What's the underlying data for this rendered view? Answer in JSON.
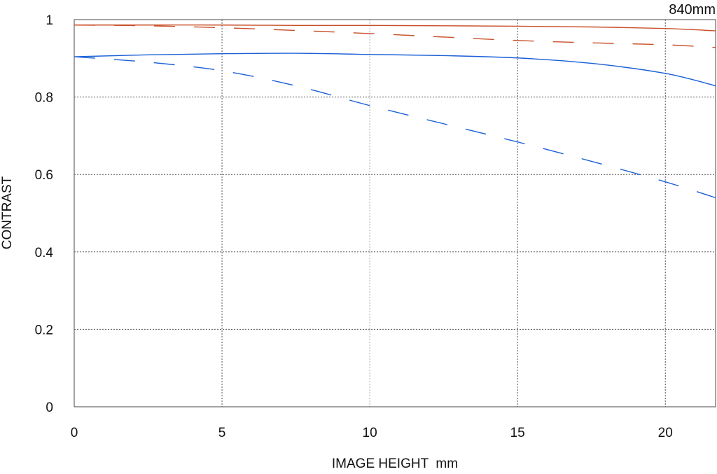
{
  "chart_data": {
    "type": "line",
    "title": "840mm",
    "xlabel": "IMAGE HEIGHT  mm",
    "ylabel": "CONTRAST",
    "xlim": [
      0,
      21.7
    ],
    "ylim": [
      0,
      1
    ],
    "xticks": [
      0,
      5,
      10,
      15,
      20
    ],
    "yticks": [
      0,
      0.2,
      0.4,
      0.6,
      0.8,
      1
    ],
    "ytick_labels": [
      "0",
      "0.2",
      "0.4",
      "0.6",
      "0.8",
      "1"
    ],
    "xtick_labels": [
      "0",
      "5",
      "10",
      "15",
      "20"
    ],
    "grid": true,
    "x": [
      0,
      2.5,
      5,
      7.5,
      10,
      12.5,
      15,
      17.5,
      20,
      21.7
    ],
    "series": [
      {
        "name": "red-solid",
        "color": "#c8502a",
        "dash": false,
        "values": [
          0.986,
          0.986,
          0.986,
          0.985,
          0.985,
          0.984,
          0.983,
          0.981,
          0.977,
          0.971
        ]
      },
      {
        "name": "red-dashed",
        "color": "#c8502a",
        "dash": true,
        "values": [
          0.986,
          0.984,
          0.979,
          0.972,
          0.964,
          0.955,
          0.946,
          0.94,
          0.935,
          0.928
        ]
      },
      {
        "name": "blue-solid",
        "color": "#1a5fd6",
        "dash": false,
        "values": [
          0.904,
          0.909,
          0.912,
          0.913,
          0.91,
          0.907,
          0.901,
          0.887,
          0.861,
          0.829
        ]
      },
      {
        "name": "blue-dashed",
        "color": "#1a5fd6",
        "dash": true,
        "values": [
          0.904,
          0.89,
          0.868,
          0.829,
          0.778,
          0.731,
          0.684,
          0.634,
          0.581,
          0.54
        ]
      }
    ]
  }
}
